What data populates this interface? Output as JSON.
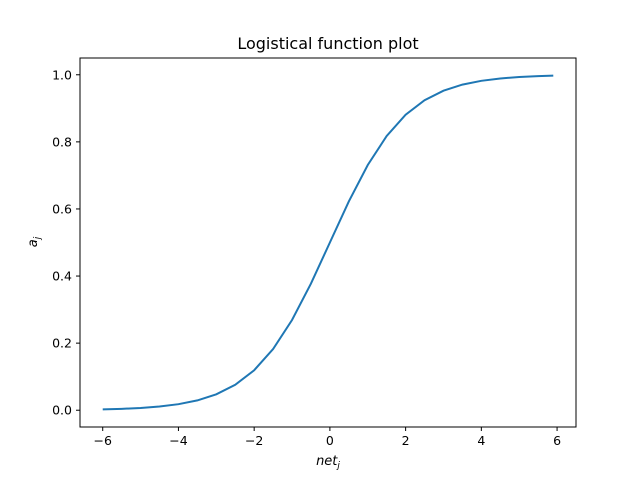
{
  "chart_data": {
    "type": "line",
    "title": "Logistical function plot",
    "xlabel": {
      "base": "net",
      "subscript": "j"
    },
    "ylabel": {
      "base": "a",
      "subscript": "j"
    },
    "xlim": [
      -6.6,
      6.5
    ],
    "ylim": [
      -0.05,
      1.05
    ],
    "xticks": [
      -6,
      -4,
      -2,
      0,
      2,
      4,
      6
    ],
    "xtick_labels": [
      "−6",
      "−4",
      "−2",
      "0",
      "2",
      "4",
      "6"
    ],
    "yticks": [
      0.0,
      0.2,
      0.4,
      0.6,
      0.8,
      1.0
    ],
    "ytick_labels": [
      "0.0",
      "0.2",
      "0.4",
      "0.6",
      "0.8",
      "1.0"
    ],
    "grid": false,
    "series": [
      {
        "color": "#1f77b4",
        "x": [
          -6.0,
          -5.5,
          -5.0,
          -4.5,
          -4.0,
          -3.5,
          -3.0,
          -2.5,
          -2.0,
          -1.5,
          -1.0,
          -0.5,
          0.0,
          0.5,
          1.0,
          1.5,
          2.0,
          2.5,
          3.0,
          3.5,
          4.0,
          4.5,
          5.0,
          5.5,
          5.9
        ],
        "y": [
          0.0025,
          0.0041,
          0.0067,
          0.011,
          0.018,
          0.0293,
          0.0474,
          0.0759,
          0.1192,
          0.1824,
          0.2689,
          0.3775,
          0.5,
          0.6225,
          0.7311,
          0.8176,
          0.8808,
          0.9241,
          0.9526,
          0.9707,
          0.982,
          0.989,
          0.9933,
          0.9959,
          0.9973
        ]
      }
    ]
  }
}
